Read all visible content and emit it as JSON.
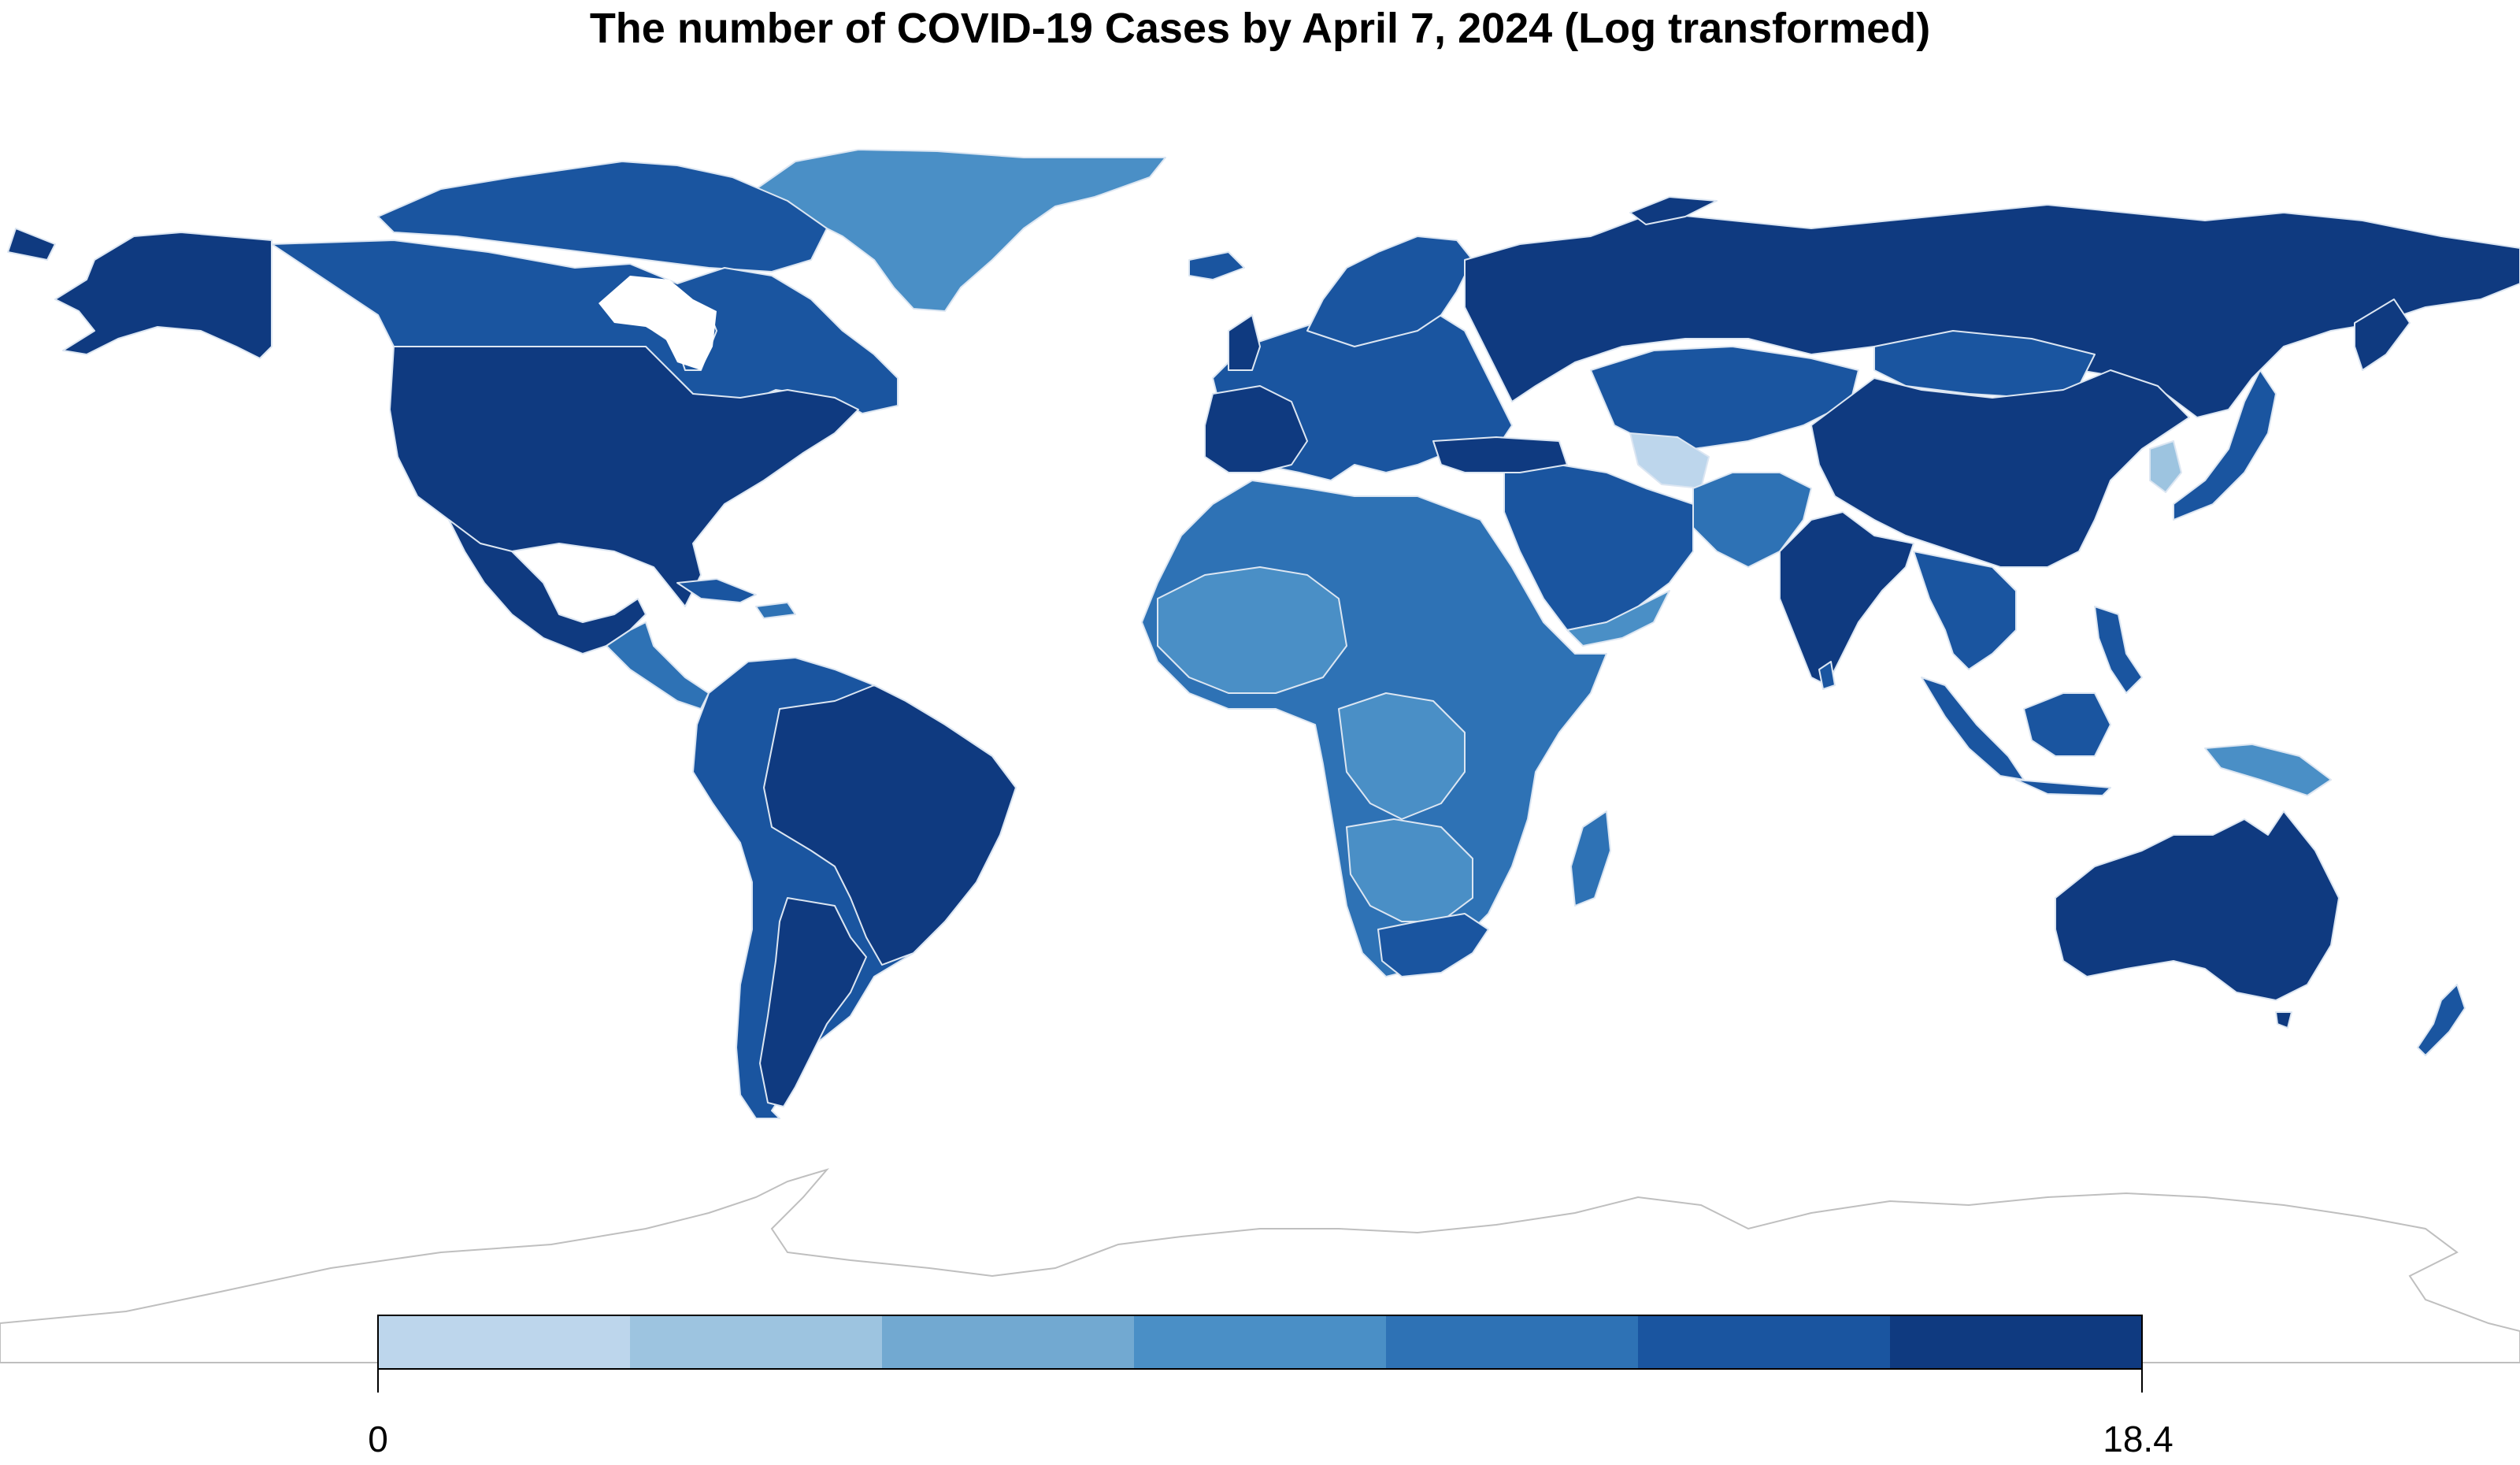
{
  "title": "The number of COVID-19 Cases by April 7, 2024 (Log transformed)",
  "legend": {
    "min_label": "0",
    "max_label": "18.4",
    "min": 0,
    "max": 18.4,
    "colors": [
      "#bdd6ec",
      "#9dc4e0",
      "#72a9d1",
      "#4a8fc6",
      "#2e72b5",
      "#1a55a0",
      "#0f3a80"
    ]
  },
  "colors": {
    "lightest": "#bdd6ec",
    "darkest": "#0f3a80",
    "border": "#dce6f2",
    "antarctica_outline": "#bfbfbf"
  }
}
